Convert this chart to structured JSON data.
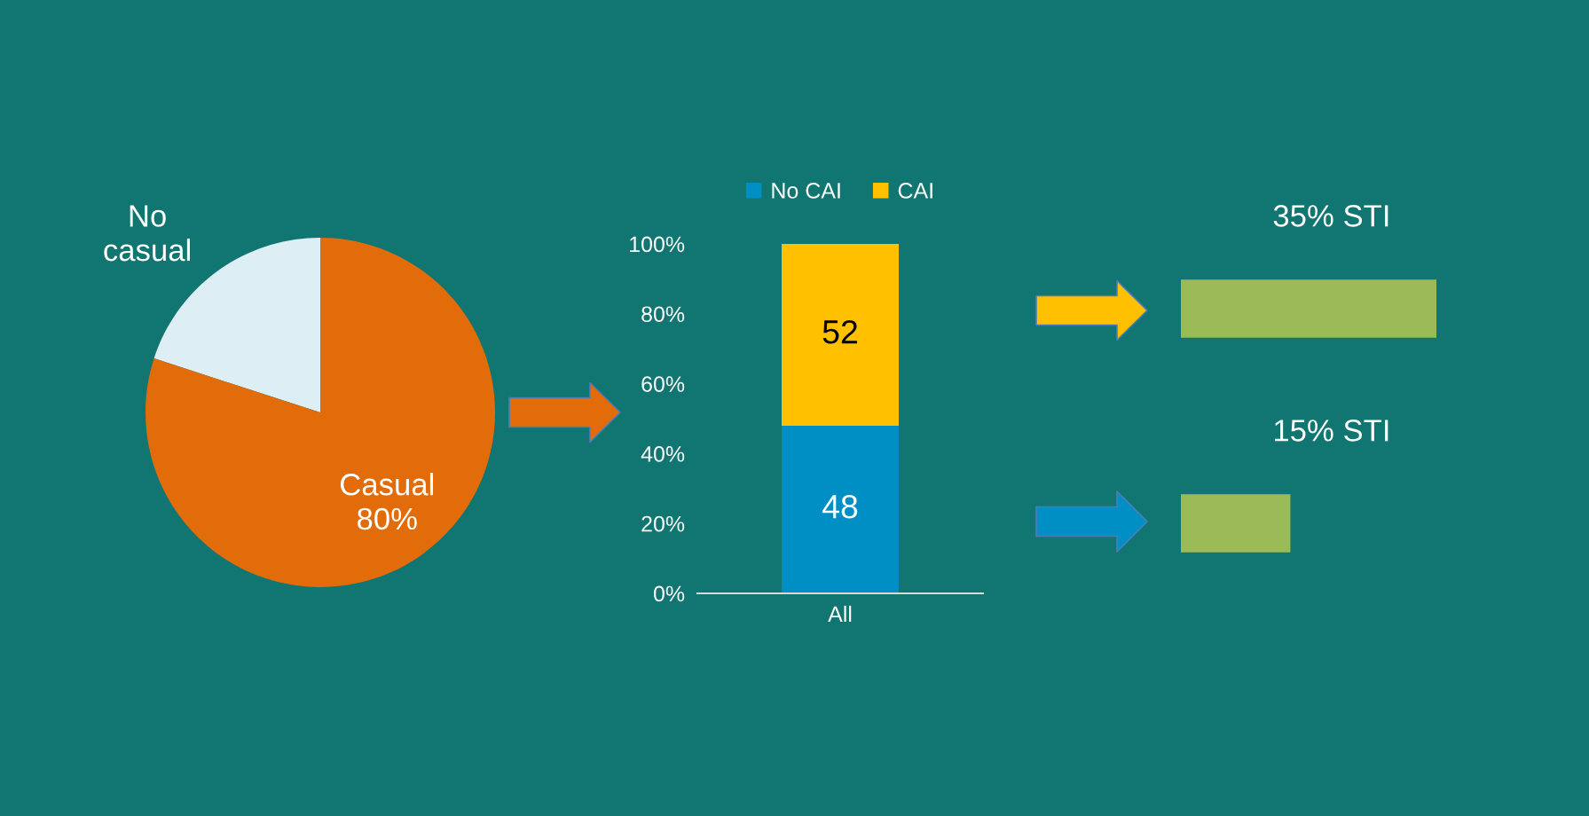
{
  "chart_data": [
    {
      "type": "pie",
      "categories": [
        "No casual",
        "Casual"
      ],
      "values": [
        20,
        80
      ],
      "colors": [
        "#ddeef4",
        "#e36c0a"
      ],
      "value_labels": [
        null,
        "80%"
      ]
    },
    {
      "type": "bar",
      "stacked": true,
      "categories": [
        "All"
      ],
      "series": [
        {
          "name": "No CAI",
          "color": "#008fc4",
          "values": [
            48
          ]
        },
        {
          "name": "CAI",
          "color": "#ffc000",
          "values": [
            52
          ]
        }
      ],
      "ylim": [
        0,
        100
      ],
      "yticks": [
        {
          "value": 0,
          "label": "0%"
        },
        {
          "value": 20,
          "label": "20%"
        },
        {
          "value": 40,
          "label": "40%"
        },
        {
          "value": 60,
          "label": "60%"
        },
        {
          "value": 80,
          "label": "80%"
        },
        {
          "value": 100,
          "label": "100%"
        }
      ],
      "data_labels": true,
      "legend": "top"
    },
    {
      "type": "bar",
      "orientation": "horizontal",
      "categories": [
        null,
        null
      ],
      "values": [
        35,
        15
      ],
      "color": "#9bbb59",
      "value_labels": [
        "35% STI",
        "15% STI"
      ],
      "tick_labels": false
    }
  ]
}
